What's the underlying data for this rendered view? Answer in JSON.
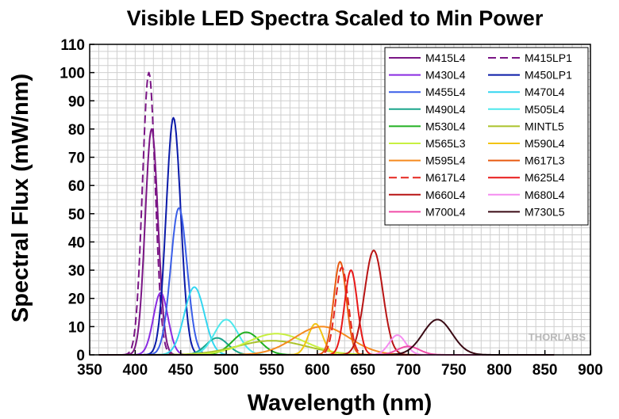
{
  "chart_data": {
    "type": "line",
    "title": "Visible LED Spectra Scaled to Min Power",
    "xlabel": "Wavelength (nm)",
    "ylabel": "Spectral Flux (mW/nm)",
    "xlim": [
      350,
      900
    ],
    "ylim": [
      0,
      110
    ],
    "x_ticks": [
      350,
      400,
      450,
      500,
      550,
      600,
      650,
      700,
      750,
      800,
      850,
      900
    ],
    "y_ticks": [
      0,
      10,
      20,
      30,
      40,
      50,
      60,
      70,
      80,
      90,
      100,
      110
    ],
    "grid": true,
    "legend_position": "top-right",
    "watermark": "THORLABS",
    "series": [
      {
        "name": "M415L4",
        "color": "#7a1585",
        "dash": false,
        "peak_nm": 418,
        "peak": 80,
        "width": 7
      },
      {
        "name": "M415LP1",
        "color": "#7a1585",
        "dash": true,
        "peak_nm": 415,
        "peak": 100,
        "width": 7
      },
      {
        "name": "M430L4",
        "color": "#8a2be2",
        "dash": false,
        "peak_nm": 428,
        "peak": 22,
        "width": 8
      },
      {
        "name": "M450LP1",
        "color": "#0a1aa8",
        "dash": false,
        "peak_nm": 442,
        "peak": 84,
        "width": 8
      },
      {
        "name": "M455L4",
        "color": "#3a5ee8",
        "dash": false,
        "peak_nm": 448,
        "peak": 52,
        "width": 9
      },
      {
        "name": "M470L4",
        "color": "#33d6f0",
        "dash": false,
        "peak_nm": 465,
        "peak": 24,
        "width": 11
      },
      {
        "name": "M490L4",
        "color": "#1aa58c",
        "dash": false,
        "peak_nm": 490,
        "peak": 6,
        "width": 12
      },
      {
        "name": "M505L4",
        "color": "#4ee8ec",
        "dash": false,
        "peak_nm": 500,
        "peak": 12.5,
        "width": 13
      },
      {
        "name": "M530L4",
        "color": "#22b022",
        "dash": false,
        "peak_nm": 522,
        "peak": 8,
        "width": 15
      },
      {
        "name": "MINTL5",
        "color": "#aac22a",
        "dash": false,
        "peak_nm": 550,
        "peak": 5,
        "width": 38
      },
      {
        "name": "M565L3",
        "color": "#c8f040",
        "dash": false,
        "peak_nm": 555,
        "peak": 7.5,
        "width": 32
      },
      {
        "name": "M590L4",
        "color": "#f2c414",
        "dash": false,
        "peak_nm": 598,
        "peak": 11,
        "width": 8
      },
      {
        "name": "M595L4",
        "color": "#f58a1f",
        "dash": false,
        "peak_nm": 605,
        "peak": 10,
        "width": 30
      },
      {
        "name": "M617L3",
        "color": "#e85a10",
        "dash": false,
        "peak_nm": 625,
        "peak": 33,
        "width": 7
      },
      {
        "name": "M617L4",
        "color": "#e5261f",
        "dash": true,
        "peak_nm": 627,
        "peak": 31,
        "width": 7
      },
      {
        "name": "M625L4",
        "color": "#e81818",
        "dash": false,
        "peak_nm": 637,
        "peak": 30,
        "width": 7
      },
      {
        "name": "M660L4",
        "color": "#b81414",
        "dash": false,
        "peak_nm": 662,
        "peak": 37,
        "width": 10
      },
      {
        "name": "M680L4",
        "color": "#f58cf0",
        "dash": false,
        "peak_nm": 688,
        "peak": 7,
        "width": 9
      },
      {
        "name": "M700L4",
        "color": "#f04ca8",
        "dash": false,
        "peak_nm": 700,
        "peak": 3,
        "width": 12
      },
      {
        "name": "M730L5",
        "color": "#3a0a14",
        "dash": false,
        "peak_nm": 732,
        "peak": 12.5,
        "width": 16
      }
    ]
  }
}
